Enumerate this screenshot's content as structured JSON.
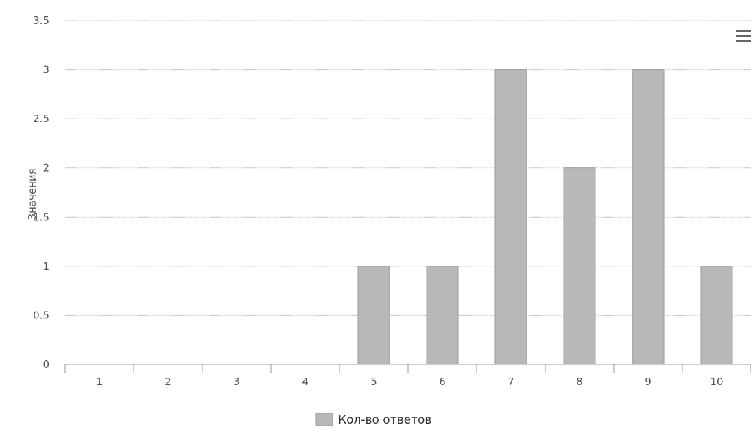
{
  "chart_data": {
    "type": "bar",
    "categories": [
      "1",
      "2",
      "3",
      "4",
      "5",
      "6",
      "7",
      "8",
      "9",
      "10"
    ],
    "series": [
      {
        "name": "Кол-во ответов",
        "values": [
          0,
          0,
          0,
          0,
          1,
          1,
          3,
          2,
          3,
          1
        ]
      }
    ],
    "title": "",
    "xlabel": "",
    "ylabel": "Значения",
    "ylim": [
      0,
      3.5
    ],
    "yticks": [
      "0",
      "0.5",
      "1",
      "1.5",
      "2",
      "2.5",
      "3",
      "3.5"
    ],
    "grid": true,
    "legend": "bottom-center",
    "colors": {
      "bar": "#b8b8b8",
      "grid": "#c9c9c9"
    }
  },
  "toolbar": {
    "menu_icon": "hamburger-menu-icon"
  }
}
